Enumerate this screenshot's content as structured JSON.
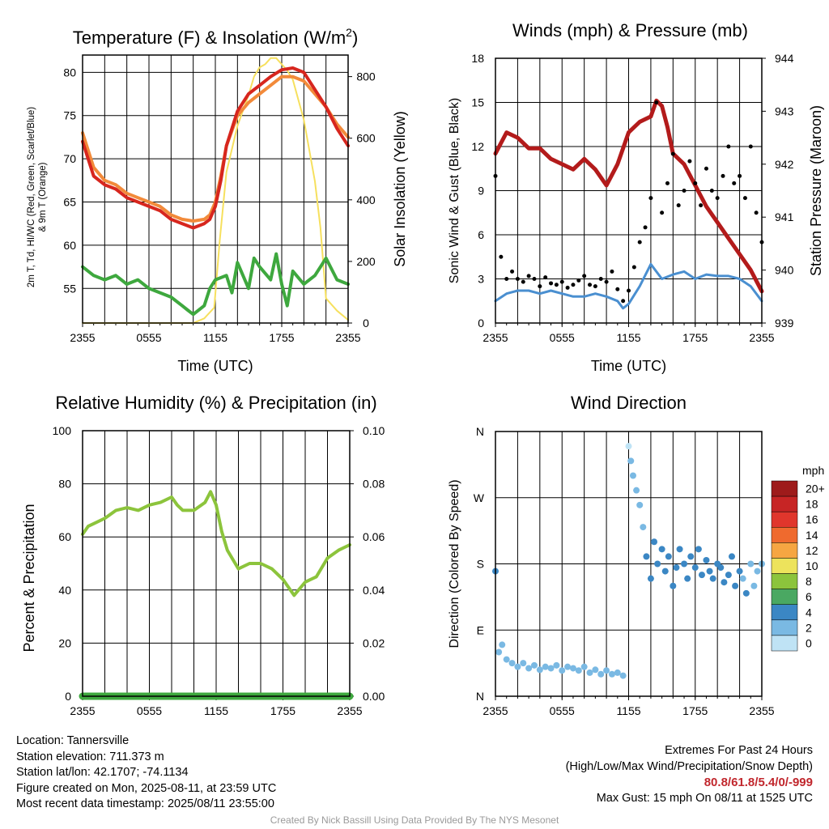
{
  "chart_data": [
    {
      "id": "temp",
      "type": "line",
      "title": "Temperature (F) & Insolation (W/m",
      "title_sup": "2",
      "title_end": ")",
      "xlabel": "Time (UTC)",
      "ylabel_line1": "2m T, Td, HI/WC (Red, Green, Scarlet/Blue)",
      "ylabel_line2": "& 9m T (Orange)",
      "y2label": "Solar Insolation (Yellow)",
      "x_ticks": [
        "2355",
        "0555",
        "1155",
        "1755",
        "2355"
      ],
      "x_range": [
        0,
        24
      ],
      "ylim": [
        51,
        82
      ],
      "y_ticks": [
        55,
        60,
        65,
        70,
        75,
        80
      ],
      "y2lim": [
        0,
        870
      ],
      "y2_ticks": [
        0,
        200,
        400,
        600,
        800
      ],
      "series": [
        {
          "color": "#f6e05e",
          "axis": "y2",
          "width": 2,
          "x": [
            0,
            5,
            10,
            11,
            11.9,
            12.4,
            13,
            14,
            15,
            15.5,
            16,
            16.5,
            17,
            17.5,
            18,
            18.5,
            19,
            20,
            21,
            21.5,
            22,
            23,
            24
          ],
          "values": [
            0,
            0,
            0,
            15,
            50,
            270,
            490,
            640,
            740,
            800,
            830,
            840,
            860,
            860,
            840,
            820,
            790,
            660,
            460,
            310,
            80,
            40,
            10
          ]
        },
        {
          "color": "#f28a3a",
          "axis": "y",
          "width": 4,
          "x": [
            0,
            1,
            2,
            3,
            4,
            5,
            6,
            7,
            8,
            9,
            10,
            11,
            11.5,
            12,
            12.5,
            13,
            14,
            15,
            16,
            17,
            18,
            19,
            20,
            21,
            22,
            23,
            24
          ],
          "values": [
            73,
            69,
            67.5,
            67,
            66,
            65.5,
            65,
            64.5,
            63.5,
            63,
            62.8,
            63,
            63.5,
            65,
            68,
            71.5,
            75,
            76.5,
            77.5,
            78.5,
            79.5,
            79.5,
            79,
            77.5,
            76,
            74,
            72.5
          ]
        },
        {
          "color": "#d7261e",
          "axis": "y",
          "width": 4,
          "x": [
            0,
            1,
            2,
            3,
            4,
            5,
            6,
            7,
            8,
            9,
            10,
            11,
            11.5,
            12,
            12.5,
            13,
            14,
            15,
            16,
            17,
            18,
            19,
            20,
            21,
            22,
            23,
            24
          ],
          "values": [
            72,
            68,
            67,
            66.5,
            65.5,
            65,
            64.5,
            64,
            63,
            62.5,
            62,
            62.5,
            63,
            64.5,
            67.5,
            71.5,
            75.5,
            77.5,
            78.5,
            79.5,
            80.3,
            80.5,
            80,
            78,
            76,
            73.5,
            71.5
          ]
        },
        {
          "color": "#3ea83e",
          "axis": "y",
          "width": 4,
          "x": [
            0,
            1,
            2,
            3,
            4,
            5,
            6,
            7,
            8,
            9,
            9.5,
            10,
            11,
            11.5,
            12,
            13,
            13.5,
            14,
            15,
            15.5,
            16,
            17,
            17.5,
            18,
            18.5,
            19,
            20,
            21,
            22,
            23,
            24
          ],
          "values": [
            57.5,
            56.5,
            56,
            56.5,
            55.5,
            56,
            55,
            54.5,
            54,
            53,
            52.5,
            52,
            53,
            55,
            56,
            56.5,
            54.5,
            58,
            55,
            58.5,
            57.5,
            56,
            59,
            55.5,
            53,
            57,
            55.5,
            56.5,
            58.5,
            56,
            55.5
          ]
        }
      ]
    },
    {
      "id": "wind",
      "type": "line",
      "title": "Winds (mph) & Pressure (mb)",
      "xlabel": "Time (UTC)",
      "ylabel": "Sonic Wind & Gust (Blue, Black)",
      "y2label": "Station Pressure (Maroon)",
      "x_ticks": [
        "2355",
        "0555",
        "1155",
        "1755",
        "2355"
      ],
      "x_range": [
        0,
        24
      ],
      "ylim": [
        0,
        18
      ],
      "y_ticks": [
        0,
        3,
        6,
        9,
        12,
        15,
        18
      ],
      "y2lim": [
        939,
        944
      ],
      "y2_ticks": [
        939,
        940,
        941,
        942,
        943,
        944
      ],
      "series": [
        {
          "color": "#4a8fd0",
          "axis": "y",
          "width": 3,
          "x": [
            0,
            1,
            2,
            3,
            4,
            5,
            6,
            7,
            8,
            9,
            10,
            11,
            11.5,
            12,
            13,
            14,
            15,
            16,
            17,
            18,
            19,
            20,
            21,
            22,
            23,
            24
          ],
          "values": [
            1.5,
            2,
            2.2,
            2.2,
            2,
            2.2,
            2,
            1.8,
            1.8,
            2,
            1.8,
            1.5,
            1,
            1.3,
            2.5,
            4,
            3,
            3.3,
            3.5,
            3,
            3.3,
            3.2,
            3.2,
            3,
            2.5,
            1.5
          ]
        },
        {
          "color": "#b31b1b",
          "axis": "y2",
          "width": 5,
          "x": [
            0,
            1,
            2,
            3,
            4,
            5,
            6,
            7,
            8,
            9,
            10,
            11,
            12,
            13,
            14,
            14.5,
            15,
            15.5,
            16,
            17,
            18,
            19,
            20,
            21,
            22,
            23,
            24
          ],
          "values": [
            942.2,
            942.6,
            942.5,
            942.3,
            942.3,
            942.1,
            942,
            941.9,
            942.1,
            941.9,
            941.6,
            942,
            942.6,
            942.8,
            942.9,
            943.2,
            943.1,
            942.7,
            942.2,
            942,
            941.6,
            941.2,
            940.9,
            940.6,
            940.3,
            940,
            939.6
          ]
        },
        {
          "color": "#000000",
          "axis": "y",
          "kind": "scatter",
          "x": [
            0,
            0.5,
            1,
            1.5,
            2,
            2.5,
            3,
            3.5,
            4,
            4.5,
            5,
            5.5,
            6,
            6.5,
            7,
            7.5,
            8,
            8.5,
            9,
            9.5,
            10,
            10.5,
            11,
            11.5,
            12,
            12.5,
            13,
            13.5,
            14,
            14.5,
            15,
            15.5,
            16,
            16.5,
            17,
            17.5,
            18,
            18.5,
            19,
            19.5,
            20,
            20.5,
            21,
            21.5,
            22,
            22.5,
            23,
            23.5,
            24
          ],
          "values": [
            10,
            4.5,
            3,
            3.5,
            3,
            2.8,
            3.2,
            3,
            2.5,
            3.1,
            2.7,
            2.6,
            2.8,
            2.4,
            2.6,
            2.9,
            3.2,
            2.6,
            2.5,
            3,
            2.8,
            3.5,
            2.3,
            1.5,
            2.2,
            3.8,
            5.5,
            6.5,
            8.5,
            15,
            7.5,
            9.5,
            11.5,
            8,
            9,
            11,
            9.5,
            8,
            10.5,
            9,
            8.5,
            10,
            12,
            9.5,
            10,
            8.5,
            12,
            7.5,
            5.5
          ]
        }
      ]
    },
    {
      "id": "rh",
      "type": "line",
      "title": "Relative Humidity (%) & Precipitation (in)",
      "xlabel": "",
      "ylabel": "Percent & Precipitation",
      "x_ticks": [
        "2355",
        "0555",
        "1155",
        "1755",
        "2355"
      ],
      "x_range": [
        0,
        24
      ],
      "ylim": [
        0,
        100
      ],
      "y_ticks": [
        0,
        20,
        40,
        60,
        80,
        100
      ],
      "y2lim": [
        0,
        0.1
      ],
      "y2_ticks": [
        "0.00",
        "0.02",
        "0.04",
        "0.06",
        "0.08",
        "0.10"
      ],
      "series": [
        {
          "color": "#8cc43c",
          "axis": "y",
          "width": 4,
          "x": [
            0,
            0.5,
            1,
            2,
            3,
            4,
            5,
            6,
            7,
            8,
            8.5,
            9,
            10,
            11,
            11.5,
            12,
            12.5,
            13,
            14,
            15,
            16,
            17,
            18,
            19,
            20,
            21,
            22,
            23,
            24
          ],
          "values": [
            61,
            64,
            65,
            67,
            70,
            71,
            70,
            72,
            73,
            75,
            72,
            70,
            70,
            73,
            77,
            72,
            62,
            55,
            48,
            50,
            50,
            48,
            44,
            38,
            43,
            45,
            52,
            55,
            57
          ]
        },
        {
          "color": "#3ea83e",
          "axis": "y2",
          "width": 9,
          "x": [
            0,
            24
          ],
          "values": [
            0,
            0
          ]
        }
      ]
    },
    {
      "id": "dir",
      "type": "scatter",
      "title": "Wind Direction",
      "ylabel": "Direction (Colored By Speed)",
      "x_ticks": [
        "2355",
        "0555",
        "1155",
        "1755",
        "2355"
      ],
      "x_range": [
        0,
        24
      ],
      "ylim": [
        0,
        360
      ],
      "y_ticks": [
        "N",
        "E",
        "S",
        "W",
        "N"
      ],
      "x": [
        0,
        0.3,
        0.6,
        1,
        1.5,
        2,
        2.5,
        3,
        3.5,
        4,
        4.5,
        5,
        5.5,
        6,
        6.5,
        7,
        7.5,
        8,
        8.5,
        9,
        9.5,
        10,
        10.5,
        11,
        11.5,
        12,
        12.2,
        12.4,
        12.7,
        13,
        13.3,
        13.6,
        14,
        14.3,
        14.6,
        15,
        15.3,
        15.6,
        16,
        16.3,
        16.6,
        17,
        17.3,
        17.6,
        18,
        18.3,
        18.6,
        19,
        19.3,
        19.6,
        20,
        20.3,
        20.6,
        21,
        21.3,
        21.6,
        22,
        22.3,
        22.6,
        23,
        23.3,
        23.6,
        24
      ],
      "values": [
        170,
        60,
        70,
        50,
        45,
        40,
        45,
        38,
        42,
        36,
        40,
        38,
        42,
        35,
        40,
        38,
        35,
        40,
        32,
        36,
        30,
        35,
        30,
        32,
        28,
        340,
        320,
        300,
        280,
        260,
        230,
        190,
        160,
        210,
        180,
        200,
        170,
        190,
        150,
        175,
        200,
        180,
        160,
        190,
        175,
        200,
        165,
        185,
        170,
        160,
        180,
        175,
        155,
        165,
        190,
        150,
        170,
        160,
        140,
        180,
        150,
        170,
        180
      ],
      "speeds": [
        3,
        2,
        2,
        2,
        2,
        2,
        2,
        2,
        2,
        2,
        2,
        2,
        2,
        2,
        2,
        2,
        2,
        2,
        2,
        2,
        1,
        2,
        2,
        1,
        1,
        0,
        1,
        2,
        2,
        2,
        2,
        3,
        3,
        3,
        3,
        3,
        4,
        3,
        4,
        3,
        3,
        4,
        3,
        4,
        3,
        3,
        4,
        3,
        3,
        3,
        4,
        3,
        3,
        3,
        3,
        3,
        3,
        2,
        3,
        2,
        2,
        2,
        2
      ],
      "legend_title": "mph",
      "legend_labels": [
        "20+",
        "18",
        "16",
        "14",
        "12",
        "10",
        "8",
        "6",
        "4",
        "2",
        "0"
      ],
      "legend_colors": [
        "#9e1b1b",
        "#c72525",
        "#e0362c",
        "#ef6a2e",
        "#f6a642",
        "#ede35c",
        "#8cc43c",
        "#4aa862",
        "#3b87c4",
        "#7ab9e3",
        "#bfe3f5"
      ]
    }
  ],
  "footer": {
    "location": "Location: Tannersville",
    "elevation": "Station elevation: 711.373 m",
    "latlon": "Station lat/lon: 42.1707; -74.1134",
    "created": "Figure created on Mon, 2025-08-11, at 23:59 UTC",
    "recent": "Most recent data timestamp: 2025/08/11 23:55:00",
    "extremes_title": "Extremes For Past 24 Hours",
    "extremes_desc": "(High/Low/Max Wind/Precipitation/Snow Depth)",
    "extremes_values": "80.8/61.8/5.4/0/-999",
    "max_gust": "Max Gust: 15 mph On 08/11 at 1525 UTC",
    "credit": "Created By Nick Bassill Using Data Provided By The NYS Mesonet"
  }
}
